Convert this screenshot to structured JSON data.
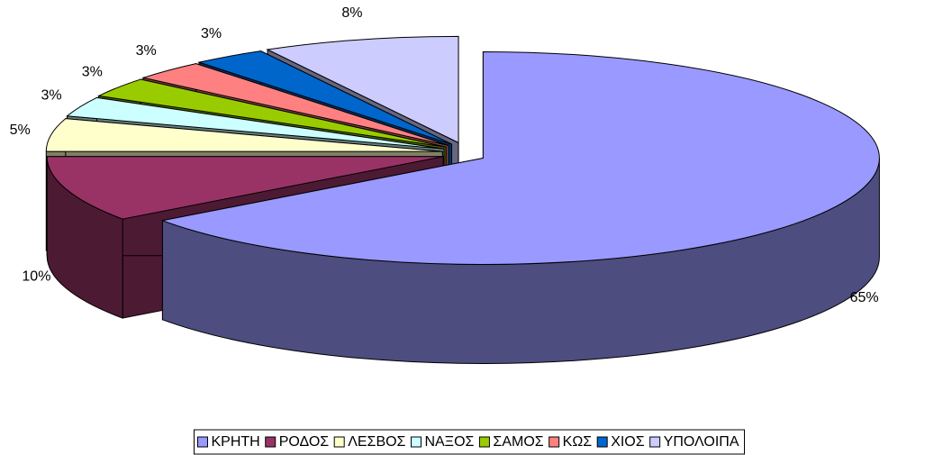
{
  "chart_data": {
    "type": "pie3d",
    "categories": [
      "ΚΡΗΤΗ",
      "ΡΟΔΟΣ",
      "ΛΕΣΒΟΣ",
      "ΝΑΞΟΣ",
      "ΣΑΜΟΣ",
      "ΚΩΣ",
      "ΧΙΟΣ",
      "ΥΠΟΛΟΙΠΑ"
    ],
    "values": [
      65,
      10,
      5,
      3,
      3,
      3,
      3,
      8
    ],
    "value_labels": [
      "65%",
      "10%",
      "5%",
      "3%",
      "3%",
      "3%",
      "3%",
      "8%"
    ],
    "colors": [
      "#9999ff",
      "#993366",
      "#ffffcc",
      "#ccffff",
      "#99cc00",
      "#ff8080",
      "#0066cc",
      "#ccccff"
    ],
    "legend": "bottom"
  }
}
